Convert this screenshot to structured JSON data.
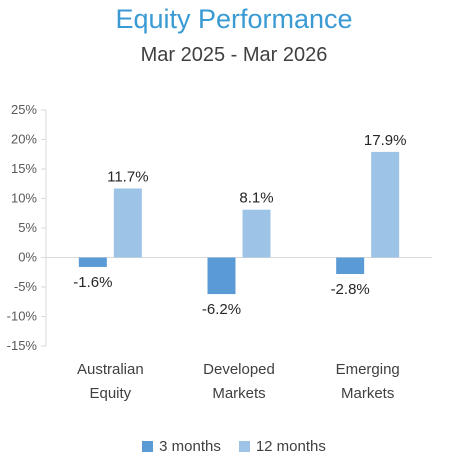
{
  "chart_data": {
    "type": "bar",
    "title": "Equity Performance",
    "subtitle": "Mar 2025 - Mar 2026",
    "categories": [
      [
        "Australian",
        "Equity"
      ],
      [
        "Developed",
        "Markets"
      ],
      [
        "Emerging",
        "Markets"
      ]
    ],
    "series": [
      {
        "name": "3 months",
        "values": [
          -1.6,
          -6.2,
          -2.8
        ],
        "labels": [
          "-1.6%",
          "-6.2%",
          "-2.8%"
        ],
        "color": "#5b9bd5"
      },
      {
        "name": "12 months",
        "values": [
          11.7,
          8.1,
          17.9
        ],
        "labels": [
          "11.7%",
          "8.1%",
          "17.9%"
        ],
        "color": "#9dc3e6"
      }
    ],
    "ylim": [
      -15,
      25
    ],
    "yticks": [
      25,
      20,
      15,
      10,
      5,
      0,
      -5,
      -10,
      -15
    ],
    "ytick_labels": [
      "25%",
      "20%",
      "15%",
      "10%",
      "5%",
      "0%",
      "-5%",
      "-10%",
      "-15%"
    ],
    "grid": false,
    "legend_position": "bottom"
  }
}
